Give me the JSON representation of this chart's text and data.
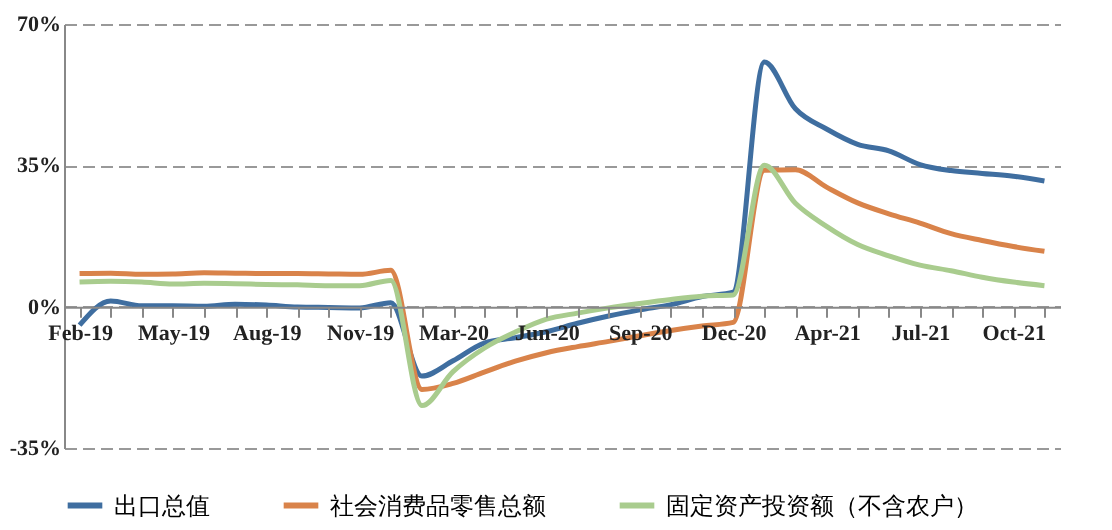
{
  "chart_data": {
    "type": "line",
    "categories": [
      "Feb-19",
      null,
      null,
      "May-19",
      null,
      null,
      "Aug-19",
      null,
      null,
      "Nov-19",
      null,
      null,
      "Mar-20",
      null,
      null,
      "Jun-20",
      null,
      null,
      "Sep-20",
      null,
      null,
      "Dec-20",
      null,
      null,
      "Apr-21",
      null,
      null,
      "Jul-21",
      null,
      null,
      "Oct-21",
      null
    ],
    "series": [
      {
        "name": "出口总值",
        "color": "#3f6ea0",
        "values": [
          -4.6,
          1.4,
          0.2,
          0.2,
          0.1,
          0.6,
          0.4,
          -0.1,
          -0.2,
          -0.3,
          1.0,
          -17.2,
          -13.4,
          -9.0,
          -7.7,
          -6.2,
          -4.1,
          -2.3,
          -0.8,
          0.5,
          2.5,
          3.6,
          60.6,
          49.0,
          44.0,
          40.2,
          38.6,
          35.2,
          33.7,
          33.0,
          32.3,
          31.1
        ]
      },
      {
        "name": "社会消费品零售总额",
        "color": "#d9834a",
        "values": [
          8.2,
          8.3,
          8.0,
          8.1,
          8.4,
          8.3,
          8.2,
          8.2,
          8.1,
          8.0,
          9.0,
          -20.5,
          -19.0,
          -16.2,
          -13.5,
          -11.4,
          -9.9,
          -8.6,
          -7.2,
          -5.9,
          -4.8,
          -3.9,
          33.8,
          33.9,
          29.6,
          25.7,
          23.0,
          20.7,
          18.1,
          16.4,
          14.9,
          13.7
        ]
      },
      {
        "name": "固定资产投资额（不含农户）",
        "color": "#a9cc8e",
        "values": [
          6.1,
          6.3,
          6.1,
          5.6,
          5.8,
          5.7,
          5.5,
          5.4,
          5.2,
          5.2,
          6.5,
          -24.5,
          -16.1,
          -10.3,
          -6.3,
          -3.1,
          -1.6,
          -0.3,
          0.8,
          1.8,
          2.6,
          2.9,
          35.0,
          25.6,
          19.9,
          15.4,
          12.6,
          10.3,
          8.9,
          7.3,
          6.1,
          5.2
        ]
      }
    ],
    "ylim": [
      -35,
      70
    ],
    "yticks": [
      {
        "value": -35,
        "label": "-35%"
      },
      {
        "value": 0,
        "label": "0%"
      },
      {
        "value": 35,
        "label": "35%"
      },
      {
        "value": 70,
        "label": "70%"
      }
    ],
    "grid": "y",
    "legend": "bottom",
    "line_style": "solid",
    "marker": "none"
  }
}
